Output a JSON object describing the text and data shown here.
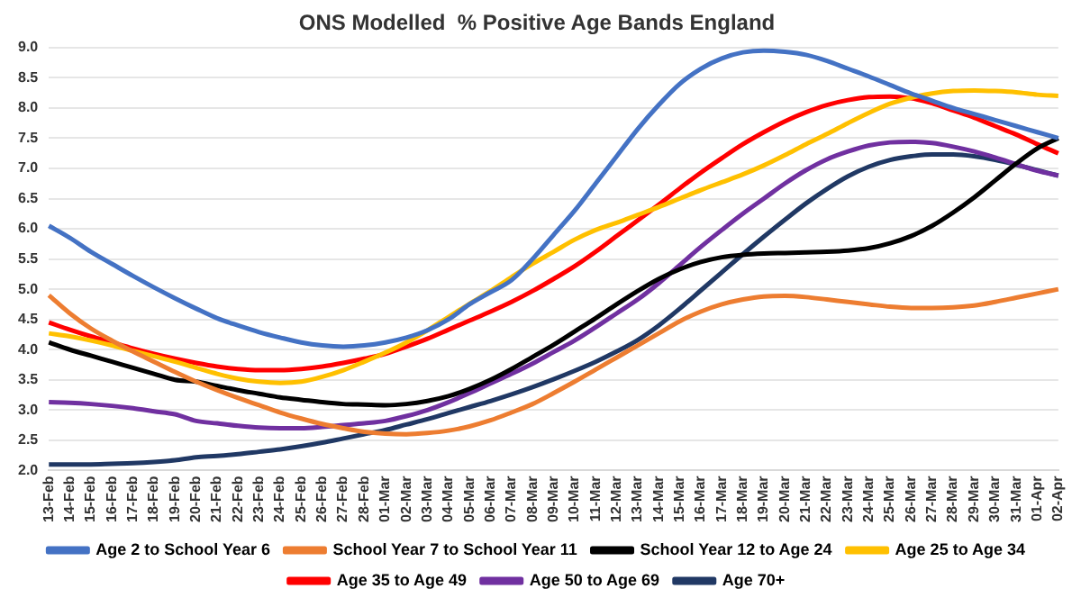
{
  "chart_data": {
    "type": "line",
    "title": "ONS Modelled  % Positive Age Bands England",
    "categories": [
      "13-Feb",
      "14-Feb",
      "15-Feb",
      "16-Feb",
      "17-Feb",
      "18-Feb",
      "19-Feb",
      "20-Feb",
      "21-Feb",
      "22-Feb",
      "23-Feb",
      "24-Feb",
      "25-Feb",
      "26-Feb",
      "27-Feb",
      "28-Feb",
      "01-Mar",
      "02-Mar",
      "03-Mar",
      "04-Mar",
      "05-Mar",
      "06-Mar",
      "07-Mar",
      "08-Mar",
      "09-Mar",
      "10-Mar",
      "11-Mar",
      "12-Mar",
      "13-Mar",
      "14-Mar",
      "15-Mar",
      "16-Mar",
      "17-Mar",
      "18-Mar",
      "19-Mar",
      "20-Mar",
      "21-Mar",
      "22-Mar",
      "23-Mar",
      "24-Mar",
      "25-Mar",
      "26-Mar",
      "27-Mar",
      "28-Mar",
      "29-Mar",
      "30-Mar",
      "31-Mar",
      "01-Apr",
      "02-Apr"
    ],
    "series": [
      {
        "name": "Age 2 to School Year 6",
        "color": "#4472c4",
        "values": [
          6.05,
          5.85,
          5.62,
          5.42,
          5.22,
          5.03,
          4.85,
          4.68,
          4.52,
          4.4,
          4.29,
          4.2,
          4.12,
          4.07,
          4.05,
          4.07,
          4.12,
          4.2,
          4.32,
          4.5,
          4.75,
          4.95,
          5.15,
          5.5,
          5.9,
          6.3,
          6.75,
          7.2,
          7.65,
          8.05,
          8.4,
          8.65,
          8.82,
          8.92,
          8.95,
          8.93,
          8.88,
          8.78,
          8.65,
          8.52,
          8.38,
          8.24,
          8.12,
          8.0,
          7.9,
          7.8,
          7.7,
          7.6,
          7.5
        ]
      },
      {
        "name": "School Year 7 to School Year 11",
        "color": "#ed7d31",
        "values": [
          4.9,
          4.6,
          4.35,
          4.15,
          3.97,
          3.8,
          3.63,
          3.47,
          3.33,
          3.2,
          3.08,
          2.96,
          2.86,
          2.77,
          2.7,
          2.64,
          2.61,
          2.6,
          2.62,
          2.66,
          2.73,
          2.83,
          2.96,
          3.1,
          3.28,
          3.47,
          3.67,
          3.87,
          4.07,
          4.27,
          4.47,
          4.63,
          4.75,
          4.83,
          4.88,
          4.89,
          4.87,
          4.83,
          4.79,
          4.75,
          4.71,
          4.69,
          4.69,
          4.7,
          4.73,
          4.79,
          4.86,
          4.93,
          5.0
        ]
      },
      {
        "name": "School Year 12 to Age 24",
        "color": "#000000",
        "values": [
          4.12,
          4.0,
          3.9,
          3.8,
          3.7,
          3.6,
          3.5,
          3.47,
          3.4,
          3.33,
          3.27,
          3.21,
          3.17,
          3.13,
          3.1,
          3.09,
          3.08,
          3.1,
          3.15,
          3.23,
          3.35,
          3.5,
          3.68,
          3.88,
          4.08,
          4.3,
          4.52,
          4.75,
          4.97,
          5.17,
          5.33,
          5.45,
          5.53,
          5.57,
          5.59,
          5.6,
          5.61,
          5.62,
          5.64,
          5.68,
          5.76,
          5.88,
          6.05,
          6.27,
          6.52,
          6.8,
          7.08,
          7.33,
          7.5
        ]
      },
      {
        "name": "Age 25 to Age 34",
        "color": "#ffc000",
        "values": [
          4.27,
          4.22,
          4.15,
          4.07,
          3.98,
          3.89,
          3.8,
          3.7,
          3.6,
          3.52,
          3.47,
          3.45,
          3.47,
          3.55,
          3.66,
          3.8,
          3.95,
          4.12,
          4.32,
          4.54,
          4.76,
          4.97,
          5.2,
          5.42,
          5.62,
          5.82,
          5.98,
          6.1,
          6.23,
          6.36,
          6.5,
          6.64,
          6.77,
          6.9,
          7.05,
          7.22,
          7.4,
          7.57,
          7.75,
          7.92,
          8.07,
          8.17,
          8.24,
          8.28,
          8.29,
          8.28,
          8.26,
          8.22,
          8.2
        ]
      },
      {
        "name": "Age 35 to Age 49",
        "color": "#ff0000",
        "values": [
          4.45,
          4.33,
          4.22,
          4.12,
          4.02,
          3.93,
          3.85,
          3.78,
          3.72,
          3.68,
          3.66,
          3.66,
          3.68,
          3.72,
          3.78,
          3.85,
          3.93,
          4.05,
          4.18,
          4.33,
          4.48,
          4.63,
          4.79,
          4.97,
          5.17,
          5.38,
          5.62,
          5.88,
          6.14,
          6.4,
          6.67,
          6.93,
          7.17,
          7.4,
          7.6,
          7.78,
          7.93,
          8.05,
          8.13,
          8.18,
          8.19,
          8.16,
          8.08,
          7.96,
          7.84,
          7.7,
          7.56,
          7.4,
          7.25
        ]
      },
      {
        "name": "Age 50 to Age 69",
        "color": "#7030a0",
        "values": [
          3.13,
          3.12,
          3.1,
          3.07,
          3.03,
          2.98,
          2.93,
          2.82,
          2.78,
          2.74,
          2.71,
          2.7,
          2.7,
          2.72,
          2.75,
          2.78,
          2.82,
          2.9,
          3.0,
          3.13,
          3.28,
          3.44,
          3.6,
          3.77,
          3.96,
          4.15,
          4.37,
          4.6,
          4.83,
          5.1,
          5.4,
          5.7,
          5.98,
          6.25,
          6.5,
          6.75,
          6.97,
          7.15,
          7.28,
          7.38,
          7.43,
          7.44,
          7.42,
          7.36,
          7.28,
          7.18,
          7.07,
          6.96,
          6.88
        ]
      },
      {
        "name": "Age 70+",
        "color": "#203864",
        "values": [
          2.1,
          2.1,
          2.1,
          2.11,
          2.12,
          2.14,
          2.17,
          2.22,
          2.24,
          2.27,
          2.31,
          2.35,
          2.4,
          2.46,
          2.53,
          2.6,
          2.67,
          2.76,
          2.85,
          2.95,
          3.05,
          3.15,
          3.26,
          3.38,
          3.51,
          3.65,
          3.8,
          3.97,
          4.16,
          4.4,
          4.68,
          4.98,
          5.28,
          5.58,
          5.87,
          6.15,
          6.42,
          6.66,
          6.87,
          7.03,
          7.14,
          7.2,
          7.23,
          7.23,
          7.2,
          7.14,
          7.06,
          6.97,
          6.88
        ]
      }
    ],
    "ylim": [
      2,
      9
    ],
    "yticks": [
      {
        "value": 2,
        "label": "2.0"
      },
      2.5,
      {
        "value": 3,
        "label": "3.0"
      },
      3.5,
      {
        "value": 4,
        "label": "4.0"
      },
      4.5,
      {
        "value": 5,
        "label": "5.0"
      },
      5.5,
      {
        "value": 6,
        "label": "6.0"
      },
      6.5,
      {
        "value": 7,
        "label": "7.0"
      },
      7.5,
      {
        "value": 8,
        "label": "8.0"
      },
      8.5,
      {
        "value": 9,
        "label": "9.0"
      }
    ],
    "grid": "y",
    "legend": "bottom",
    "marker": "none",
    "line_style": "solid"
  }
}
